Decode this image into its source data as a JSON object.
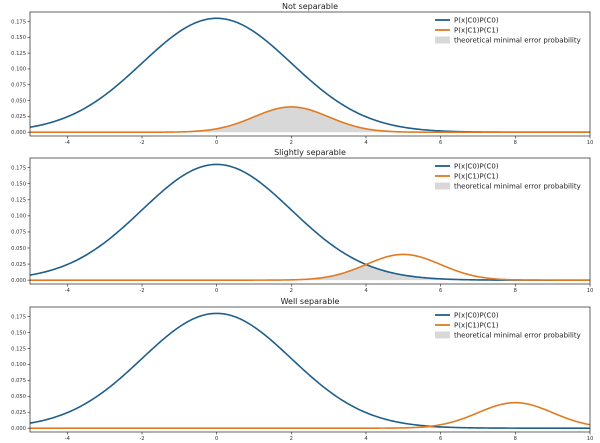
{
  "chart_data": [
    {
      "type": "line",
      "title": "Not separable",
      "xlabel": "",
      "ylabel": "",
      "xlim": [
        -5,
        10
      ],
      "ylim": [
        -0.006,
        0.19
      ],
      "xticks": [
        -4,
        -2,
        0,
        2,
        4,
        6,
        8,
        10
      ],
      "yticks": [
        0.0,
        0.025,
        0.05,
        0.075,
        0.1,
        0.125,
        0.15,
        0.175
      ],
      "x_range": [
        -5,
        10
      ],
      "series": [
        {
          "name": "P(x|C0)P(C0)",
          "kind": "gaussian",
          "mean": 0,
          "sd": 2,
          "peak": 0.18,
          "color": "#1f5f8b"
        },
        {
          "name": "P(x|C1)P(C1)",
          "kind": "gaussian",
          "mean": 2,
          "sd": 1,
          "peak": 0.04,
          "color": "#e07b24"
        }
      ],
      "fill": {
        "name": "theoretical minimal error probability",
        "rule": "min_of_series",
        "color": "#d8d8d8"
      },
      "legend": "top-right"
    },
    {
      "type": "line",
      "title": "Slightly separable",
      "xlabel": "",
      "ylabel": "",
      "xlim": [
        -5,
        10
      ],
      "ylim": [
        -0.006,
        0.19
      ],
      "xticks": [
        -4,
        -2,
        0,
        2,
        4,
        6,
        8,
        10
      ],
      "yticks": [
        0.0,
        0.025,
        0.05,
        0.075,
        0.1,
        0.125,
        0.15,
        0.175
      ],
      "x_range": [
        -5,
        10
      ],
      "series": [
        {
          "name": "P(x|C0)P(C0)",
          "kind": "gaussian",
          "mean": 0,
          "sd": 2,
          "peak": 0.18,
          "color": "#1f5f8b"
        },
        {
          "name": "P(x|C1)P(C1)",
          "kind": "gaussian",
          "mean": 5,
          "sd": 1,
          "peak": 0.04,
          "color": "#e07b24"
        }
      ],
      "fill": {
        "name": "theoretical minimal error probability",
        "rule": "min_of_series",
        "color": "#d8d8d8"
      },
      "legend": "top-right"
    },
    {
      "type": "line",
      "title": "Well separable",
      "xlabel": "",
      "ylabel": "",
      "xlim": [
        -5,
        10
      ],
      "ylim": [
        -0.006,
        0.19
      ],
      "xticks": [
        -4,
        -2,
        0,
        2,
        4,
        6,
        8,
        10
      ],
      "yticks": [
        0.0,
        0.025,
        0.05,
        0.075,
        0.1,
        0.125,
        0.15,
        0.175
      ],
      "x_range": [
        -5,
        10
      ],
      "series": [
        {
          "name": "P(x|C0)P(C0)",
          "kind": "gaussian",
          "mean": 0,
          "sd": 2,
          "peak": 0.18,
          "color": "#1f5f8b"
        },
        {
          "name": "P(x|C1)P(C1)",
          "kind": "gaussian",
          "mean": 8,
          "sd": 1,
          "peak": 0.04,
          "color": "#e07b24"
        }
      ],
      "fill": {
        "name": "theoretical minimal error probability",
        "rule": "min_of_series",
        "color": "#d8d8d8"
      },
      "legend": "top-right"
    }
  ]
}
